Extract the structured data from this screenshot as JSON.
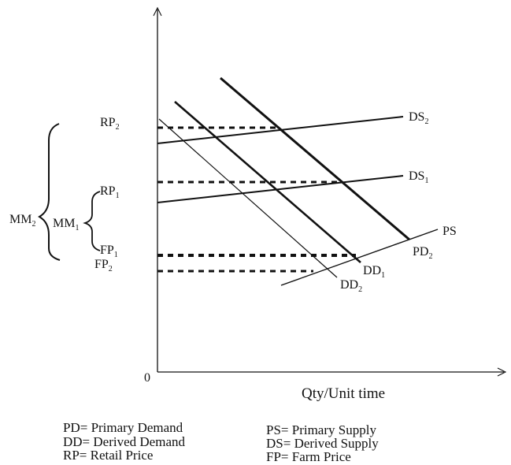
{
  "diagram": {
    "origin_label": "0",
    "x_axis_label": "Qty/Unit time",
    "lines": {
      "ds2": {
        "base": "DS",
        "sub": "2"
      },
      "ds1": {
        "base": "DS",
        "sub": "1"
      },
      "ps": {
        "base": "PS",
        "sub": ""
      },
      "pd2": {
        "base": "PD",
        "sub": "2"
      },
      "dd1": {
        "base": "DD",
        "sub": "1"
      },
      "dd2": {
        "base": "DD",
        "sub": "2"
      }
    },
    "prices": {
      "rp2": {
        "base": "RP",
        "sub": "2"
      },
      "rp1": {
        "base": "RP",
        "sub": "1"
      },
      "fp1": {
        "base": "FP",
        "sub": "1"
      },
      "fp2": {
        "base": "FP",
        "sub": "2"
      }
    },
    "margins": {
      "mm2": {
        "base": "MM",
        "sub": "2"
      },
      "mm1": {
        "base": "MM",
        "sub": "1"
      }
    },
    "legend": {
      "pd": "PD= Primary Demand",
      "dd": "DD= Derived Demand",
      "rp": "RP= Retail Price",
      "ps": "PS= Primary Supply",
      "ds": "DS= Derived Supply",
      "fp": "FP= Farm Price"
    }
  }
}
